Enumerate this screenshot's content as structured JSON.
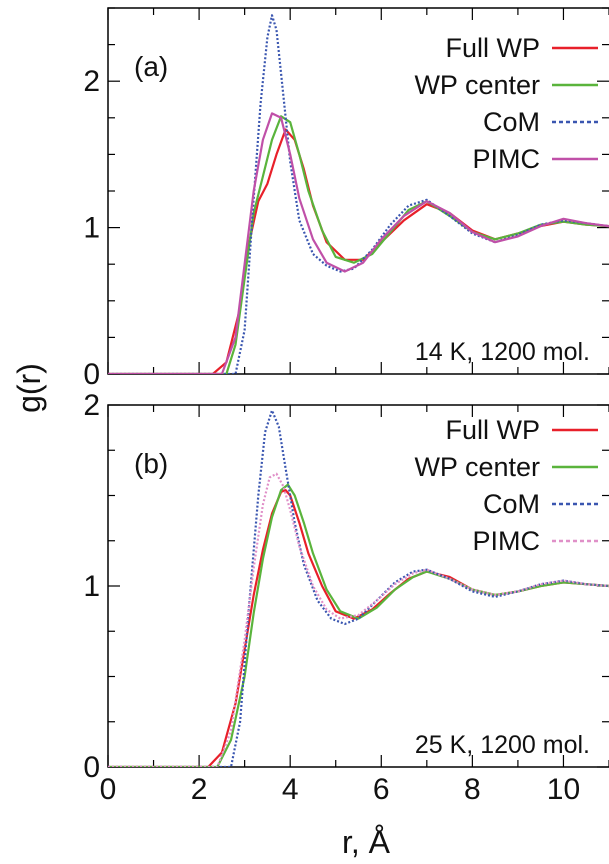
{
  "y_axis_label": "g(r)",
  "x_axis_label": "r, Å",
  "chart_data": [
    {
      "type": "line",
      "panel_label": "(a)",
      "annotation": "14 K, 1200 mol.",
      "xlim": [
        0,
        11
      ],
      "ylim": [
        0,
        2.5
      ],
      "xticks": [
        0,
        2,
        4,
        6,
        8,
        10
      ],
      "yticks": [
        0,
        1,
        2
      ],
      "legend_position": "top-right",
      "series": [
        {
          "name": "Full WP",
          "color": "#e8202a",
          "dash": "solid",
          "x": [
            0,
            2.3,
            2.6,
            2.9,
            3.1,
            3.3,
            3.5,
            3.7,
            3.9,
            4.1,
            4.3,
            4.5,
            4.8,
            5.2,
            5.6,
            6.0,
            6.5,
            7.0,
            7.5,
            8.0,
            8.5,
            9.0,
            9.5,
            10.0,
            10.5,
            11.0
          ],
          "y": [
            0,
            0,
            0.08,
            0.45,
            0.9,
            1.18,
            1.3,
            1.5,
            1.67,
            1.6,
            1.4,
            1.15,
            0.9,
            0.78,
            0.78,
            0.9,
            1.05,
            1.16,
            1.1,
            0.98,
            0.92,
            0.96,
            1.01,
            1.04,
            1.02,
            1.01
          ]
        },
        {
          "name": "WP center",
          "color": "#5ab43c",
          "dash": "solid",
          "x": [
            0,
            2.6,
            2.8,
            3.0,
            3.2,
            3.4,
            3.6,
            3.8,
            4.0,
            4.2,
            4.4,
            4.7,
            5.0,
            5.4,
            5.8,
            6.2,
            6.6,
            7.0,
            7.5,
            8.0,
            8.5,
            9.0,
            9.5,
            10.0,
            10.5,
            11.0
          ],
          "y": [
            0,
            0,
            0.2,
            0.65,
            1.1,
            1.35,
            1.6,
            1.76,
            1.72,
            1.5,
            1.25,
            0.98,
            0.8,
            0.76,
            0.82,
            0.97,
            1.12,
            1.18,
            1.08,
            0.97,
            0.92,
            0.96,
            1.02,
            1.04,
            1.02,
            1.01
          ]
        },
        {
          "name": "CoM",
          "color": "#3a56b0",
          "dash": "dotted",
          "x": [
            0,
            2.8,
            3.0,
            3.2,
            3.35,
            3.5,
            3.6,
            3.7,
            3.85,
            4.0,
            4.2,
            4.5,
            4.8,
            5.1,
            5.4,
            5.8,
            6.2,
            6.6,
            7.0,
            7.5,
            8.0,
            8.5,
            9.0,
            9.5,
            10.0,
            10.5,
            11.0
          ],
          "y": [
            0,
            0,
            0.3,
            1.2,
            1.85,
            2.3,
            2.45,
            2.35,
            1.9,
            1.45,
            1.05,
            0.82,
            0.74,
            0.7,
            0.72,
            0.85,
            1.02,
            1.15,
            1.19,
            1.08,
            0.96,
            0.9,
            0.95,
            1.02,
            1.05,
            1.03,
            1.01
          ]
        },
        {
          "name": "PIMC",
          "color": "#c050a8",
          "dash": "solid",
          "x": [
            0,
            2.5,
            2.8,
            3.0,
            3.2,
            3.4,
            3.6,
            3.8,
            4.0,
            4.2,
            4.5,
            4.8,
            5.2,
            5.6,
            6.0,
            6.5,
            7.0,
            7.5,
            8.0,
            8.5,
            9.0,
            9.5,
            10.0,
            10.5,
            11.0
          ],
          "y": [
            0,
            0,
            0.25,
            0.75,
            1.25,
            1.6,
            1.78,
            1.75,
            1.5,
            1.2,
            0.92,
            0.76,
            0.7,
            0.76,
            0.92,
            1.08,
            1.18,
            1.1,
            0.97,
            0.9,
            0.94,
            1.01,
            1.06,
            1.03,
            1.01
          ]
        }
      ]
    },
    {
      "type": "line",
      "panel_label": "(b)",
      "annotation": "25 K, 1200 mol.",
      "xlim": [
        0,
        11
      ],
      "ylim": [
        0,
        2
      ],
      "xticks": [
        0,
        2,
        4,
        6,
        8,
        10
      ],
      "yticks": [
        0,
        1,
        2
      ],
      "legend_position": "top-right",
      "series": [
        {
          "name": "Full WP",
          "color": "#e8202a",
          "dash": "solid",
          "x": [
            0,
            2.2,
            2.5,
            2.8,
            3.0,
            3.2,
            3.4,
            3.6,
            3.8,
            3.9,
            4.0,
            4.2,
            4.4,
            4.7,
            5.0,
            5.4,
            5.8,
            6.2,
            6.6,
            7.0,
            7.5,
            8.0,
            8.5,
            9.0,
            9.5,
            10.0,
            10.5,
            11.0
          ],
          "y": [
            0,
            0,
            0.08,
            0.35,
            0.65,
            0.95,
            1.2,
            1.4,
            1.52,
            1.53,
            1.5,
            1.35,
            1.18,
            1.0,
            0.86,
            0.82,
            0.87,
            0.96,
            1.04,
            1.08,
            1.05,
            0.98,
            0.95,
            0.97,
            1.0,
            1.02,
            1.01,
            1.0
          ]
        },
        {
          "name": "WP center",
          "color": "#5ab43c",
          "dash": "solid",
          "x": [
            0,
            2.4,
            2.7,
            3.0,
            3.2,
            3.4,
            3.6,
            3.8,
            3.95,
            4.1,
            4.3,
            4.5,
            4.8,
            5.1,
            5.5,
            5.9,
            6.3,
            6.7,
            7.0,
            7.5,
            8.0,
            8.5,
            9.0,
            9.5,
            10.0,
            10.5,
            11.0
          ],
          "y": [
            0,
            0,
            0.15,
            0.5,
            0.85,
            1.15,
            1.38,
            1.53,
            1.56,
            1.5,
            1.35,
            1.18,
            0.98,
            0.86,
            0.82,
            0.88,
            0.98,
            1.05,
            1.08,
            1.04,
            0.98,
            0.95,
            0.97,
            1.0,
            1.02,
            1.01,
            1.0
          ]
        },
        {
          "name": "CoM",
          "color": "#3a56b0",
          "dash": "dotted",
          "x": [
            0,
            2.7,
            2.9,
            3.1,
            3.3,
            3.45,
            3.6,
            3.75,
            3.9,
            4.1,
            4.3,
            4.6,
            4.9,
            5.2,
            5.5,
            5.9,
            6.3,
            6.7,
            7.0,
            7.5,
            8.0,
            8.5,
            9.0,
            9.5,
            10.0,
            10.5,
            11.0
          ],
          "y": [
            0,
            0,
            0.25,
            0.9,
            1.5,
            1.85,
            1.97,
            1.88,
            1.65,
            1.35,
            1.12,
            0.92,
            0.82,
            0.79,
            0.82,
            0.92,
            1.02,
            1.08,
            1.09,
            1.04,
            0.97,
            0.94,
            0.97,
            1.01,
            1.03,
            1.01,
            1.0
          ]
        },
        {
          "name": "PIMC",
          "color": "#e090c8",
          "dash": "dotted",
          "x": [
            0,
            2.4,
            2.7,
            3.0,
            3.2,
            3.4,
            3.55,
            3.7,
            3.85,
            4.0,
            4.2,
            4.5,
            4.8,
            5.1,
            5.5,
            5.9,
            6.3,
            6.7,
            7.0,
            7.5,
            8.0,
            8.5,
            9.0,
            9.5,
            10.0,
            10.5,
            11.0
          ],
          "y": [
            0,
            0,
            0.2,
            0.7,
            1.1,
            1.45,
            1.6,
            1.62,
            1.55,
            1.42,
            1.22,
            1.0,
            0.87,
            0.82,
            0.84,
            0.92,
            1.01,
            1.07,
            1.09,
            1.04,
            0.98,
            0.95,
            0.97,
            1.01,
            1.03,
            1.01,
            1.0
          ]
        }
      ]
    }
  ]
}
